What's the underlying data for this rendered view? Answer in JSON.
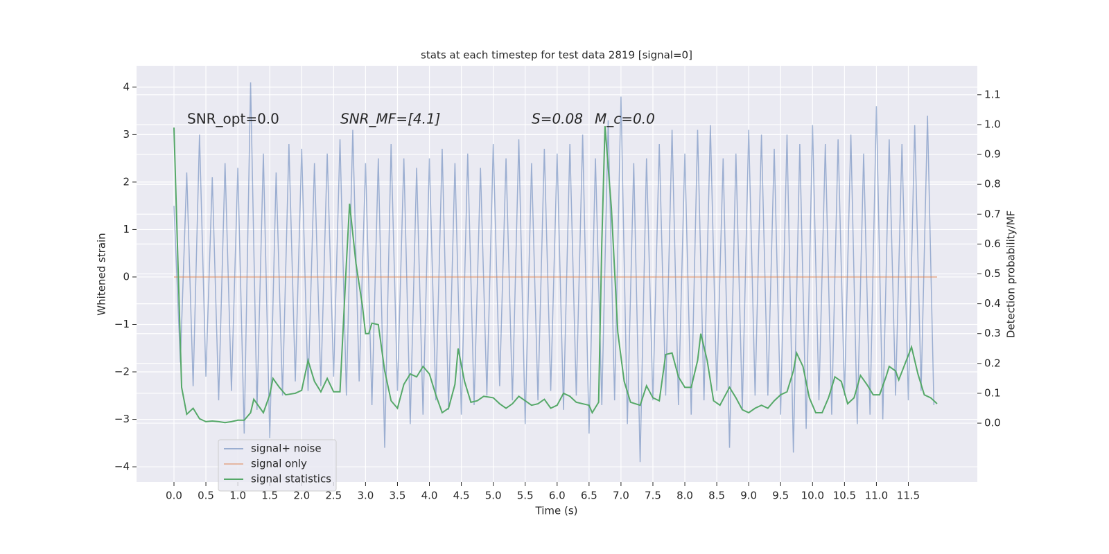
{
  "chart_data": {
    "type": "line",
    "title": "stats at each timestep for test data 2819 [signal=0]",
    "xlabel": "Time (s)",
    "ylabel": "Whitened strain",
    "y2label": "Detection probability/MF",
    "annotations": [
      "SNR_opt=0.0",
      "SNR_MF=[4.1]",
      "S=0.08",
      "M_c=0.0"
    ],
    "xlim": [
      -0.586,
      12.58
    ],
    "ylim": [
      -4.32,
      4.45
    ],
    "y2lim": [
      -0.197,
      1.197
    ],
    "xticks": [
      {
        "value": 0,
        "label": "0.0"
      },
      0.5,
      {
        "value": 1,
        "label": "1.0"
      },
      1.5,
      {
        "value": 2,
        "label": "2.0"
      },
      2.5,
      {
        "value": 3,
        "label": "3.0"
      },
      3.5,
      {
        "value": 4,
        "label": "4.0"
      },
      4.5,
      {
        "value": 5,
        "label": "5.0"
      },
      5.5,
      {
        "value": 6,
        "label": "6.0"
      },
      6.5,
      {
        "value": 7,
        "label": "7.0"
      },
      7.5,
      {
        "value": 8,
        "label": "8.0"
      },
      8.5,
      {
        "value": 9,
        "label": "9.0"
      },
      9.5,
      {
        "value": 10,
        "label": "10.0"
      },
      10.5,
      {
        "value": 11,
        "label": "11.0"
      },
      11.5
    ],
    "yticks": [
      {
        "value": -4,
        "label": "−4"
      },
      {
        "value": -3,
        "label": "−3"
      },
      {
        "value": -2,
        "label": "−2"
      },
      {
        "value": -1,
        "label": "−1"
      },
      0,
      1,
      2,
      3,
      4
    ],
    "y2ticks": [
      {
        "value": 0,
        "label": "0.0"
      },
      0.1,
      0.2,
      0.3,
      0.4,
      0.5,
      0.6,
      0.7,
      0.8,
      0.9,
      {
        "value": 1,
        "label": "1.0"
      },
      1.1
    ],
    "grid": true,
    "legend": "lower left",
    "series": [
      {
        "name": "signal+ noise",
        "color": "rgba(76,114,176,0.5)",
        "x": [
          0,
          0.1,
          0.2,
          0.3,
          0.4,
          0.5,
          0.6,
          0.7,
          0.8,
          0.9,
          1,
          1.1,
          1.2,
          1.3,
          1.4,
          1.5,
          1.6,
          1.7,
          1.8,
          1.9,
          2,
          2.1,
          2.2,
          2.3,
          2.4,
          2.5,
          2.6,
          2.7,
          2.8,
          2.9,
          3,
          3.1,
          3.2,
          3.3,
          3.4,
          3.5,
          3.6,
          3.7,
          3.8,
          3.9,
          4,
          4.1,
          4.2,
          4.3,
          4.4,
          4.5,
          4.6,
          4.7,
          4.8,
          4.9,
          5,
          5.1,
          5.2,
          5.3,
          5.4,
          5.5,
          5.6,
          5.7,
          5.8,
          5.9,
          6,
          6.1,
          6.2,
          6.3,
          6.4,
          6.5,
          6.6,
          6.7,
          6.8,
          6.9,
          7,
          7.1,
          7.2,
          7.3,
          7.4,
          7.5,
          7.6,
          7.7,
          7.8,
          7.9,
          8,
          8.1,
          8.2,
          8.3,
          8.4,
          8.5,
          8.6,
          8.7,
          8.8,
          8.9,
          9,
          9.1,
          9.2,
          9.3,
          9.4,
          9.5,
          9.6,
          9.7,
          9.8,
          9.9,
          10,
          10.1,
          10.2,
          10.3,
          10.4,
          10.5,
          10.6,
          10.7,
          10.8,
          10.9,
          11,
          11.1,
          11.2,
          11.3,
          11.4,
          11.5,
          11.6,
          11.7,
          11.8,
          11.9
        ],
        "values": [
          1.5,
          -1.8,
          2.2,
          -2.3,
          3.0,
          -2.1,
          2.1,
          -2.6,
          2.4,
          -2.4,
          2.3,
          -3.3,
          4.1,
          -2.8,
          2.6,
          -3.4,
          2.2,
          -2.5,
          2.8,
          -2.2,
          2.7,
          -2.4,
          2.4,
          -2.3,
          2.6,
          -2.1,
          2.9,
          -2.5,
          3.1,
          -2.2,
          2.4,
          -2.7,
          2.5,
          -3.6,
          2.8,
          -2.4,
          2.5,
          -3.1,
          2.3,
          -2.9,
          2.5,
          -2.6,
          2.7,
          -2.8,
          2.4,
          -2.9,
          2.6,
          -2.7,
          2.3,
          -2.5,
          2.8,
          -2.3,
          2.5,
          -2.6,
          2.9,
          -3.1,
          2.4,
          -2.6,
          2.7,
          -2.4,
          2.6,
          -2.8,
          2.8,
          -2.5,
          3.0,
          -3.3,
          2.5,
          -2.7,
          3.3,
          -2.6,
          3.8,
          -3.1,
          2.4,
          -3.9,
          2.5,
          -2.6,
          2.8,
          -2.5,
          3.1,
          -2.7,
          2.6,
          -2.9,
          3.1,
          -2.6,
          3.2,
          -2.4,
          2.5,
          -3.6,
          2.6,
          -2.8,
          3.1,
          -2.5,
          3.0,
          -2.5,
          2.7,
          -2.9,
          3.0,
          -3.7,
          2.8,
          -3.2,
          3.2,
          -2.6,
          2.8,
          -2.9,
          2.9,
          -2.5,
          3.0,
          -3.1,
          2.6,
          -2.9,
          3.6,
          -3.0,
          2.9,
          -2.5,
          2.8,
          -2.6,
          3.2,
          -2.4,
          3.4,
          -2.7
        ]
      },
      {
        "name": "signal only",
        "color": "rgba(221,132,82,0.5)",
        "x": [
          0,
          11.95
        ],
        "values": [
          0,
          0
        ]
      },
      {
        "name": "signal statistics",
        "color": "#55a868",
        "axis": "y2",
        "x": [
          0,
          0.12,
          0.2,
          0.3,
          0.4,
          0.5,
          0.6,
          0.7,
          0.8,
          0.9,
          1,
          1.1,
          1.2,
          1.25,
          1.35,
          1.4,
          1.5,
          1.55,
          1.65,
          1.75,
          1.9,
          2,
          2.1,
          2.2,
          2.3,
          2.4,
          2.5,
          2.6,
          2.7,
          2.75,
          2.85,
          2.95,
          3,
          3.05,
          3.1,
          3.2,
          3.3,
          3.4,
          3.5,
          3.6,
          3.7,
          3.8,
          3.9,
          4,
          4.1,
          4.2,
          4.3,
          4.4,
          4.45,
          4.55,
          4.65,
          4.75,
          4.85,
          5,
          5.1,
          5.2,
          5.3,
          5.4,
          5.5,
          5.6,
          5.7,
          5.8,
          5.9,
          6,
          6.1,
          6.2,
          6.3,
          6.4,
          6.5,
          6.55,
          6.65,
          6.7,
          6.75,
          6.85,
          6.95,
          7.05,
          7.15,
          7.3,
          7.4,
          7.5,
          7.6,
          7.7,
          7.8,
          7.9,
          8,
          8.1,
          8.2,
          8.25,
          8.35,
          8.45,
          8.55,
          8.7,
          8.8,
          8.9,
          9,
          9.1,
          9.2,
          9.3,
          9.4,
          9.5,
          9.6,
          9.7,
          9.75,
          9.85,
          9.95,
          10.05,
          10.15,
          10.25,
          10.35,
          10.45,
          10.55,
          10.65,
          10.75,
          10.85,
          10.95,
          11.05,
          11.15,
          11.2,
          11.3,
          11.35,
          11.45,
          11.55,
          11.65,
          11.75,
          11.85,
          11.95
        ],
        "values": [
          0.99,
          0.12,
          0.03,
          0.05,
          0.015,
          0.005,
          0.007,
          0.005,
          0.002,
          0.005,
          0.01,
          0.01,
          0.035,
          0.08,
          0.05,
          0.035,
          0.095,
          0.15,
          0.12,
          0.095,
          0.1,
          0.11,
          0.21,
          0.14,
          0.105,
          0.15,
          0.105,
          0.105,
          0.535,
          0.735,
          0.535,
          0.395,
          0.3,
          0.3,
          0.335,
          0.33,
          0.175,
          0.075,
          0.05,
          0.13,
          0.165,
          0.155,
          0.19,
          0.165,
          0.095,
          0.035,
          0.05,
          0.13,
          0.25,
          0.14,
          0.07,
          0.075,
          0.09,
          0.085,
          0.065,
          0.05,
          0.065,
          0.09,
          0.075,
          0.06,
          0.065,
          0.08,
          0.05,
          0.06,
          0.1,
          0.09,
          0.07,
          0.065,
          0.06,
          0.035,
          0.07,
          0.605,
          0.995,
          0.72,
          0.305,
          0.14,
          0.07,
          0.06,
          0.125,
          0.085,
          0.075,
          0.23,
          0.235,
          0.155,
          0.12,
          0.12,
          0.21,
          0.3,
          0.21,
          0.075,
          0.06,
          0.12,
          0.085,
          0.045,
          0.035,
          0.05,
          0.06,
          0.05,
          0.075,
          0.095,
          0.105,
          0.175,
          0.235,
          0.19,
          0.085,
          0.035,
          0.035,
          0.085,
          0.155,
          0.14,
          0.065,
          0.085,
          0.16,
          0.13,
          0.095,
          0.095,
          0.155,
          0.19,
          0.175,
          0.145,
          0.2,
          0.255,
          0.165,
          0.095,
          0.085,
          0.065
        ]
      }
    ]
  }
}
